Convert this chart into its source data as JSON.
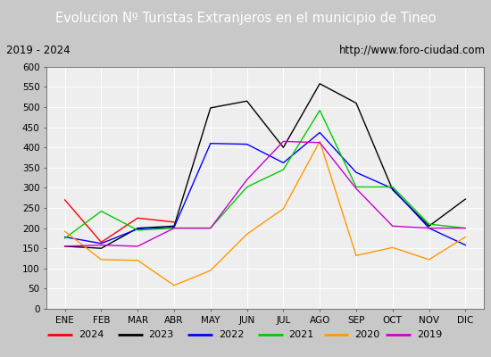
{
  "title": "Evolucion Nº Turistas Extranjeros en el municipio de Tineo",
  "subtitle_left": "2019 - 2024",
  "subtitle_right": "http://www.foro-ciudad.com",
  "months": [
    "ENE",
    "FEB",
    "MAR",
    "ABR",
    "MAY",
    "JUN",
    "JUL",
    "AGO",
    "SEP",
    "OCT",
    "NOV",
    "DIC"
  ],
  "series": {
    "2024": [
      270,
      165,
      225,
      215,
      null,
      null,
      null,
      null,
      null,
      null,
      null,
      null
    ],
    "2023": [
      155,
      150,
      200,
      205,
      498,
      515,
      400,
      558,
      510,
      295,
      205,
      272
    ],
    "2022": [
      178,
      162,
      198,
      202,
      410,
      408,
      362,
      437,
      338,
      298,
      200,
      158
    ],
    "2021": [
      175,
      242,
      195,
      200,
      200,
      302,
      345,
      492,
      302,
      302,
      210,
      200
    ],
    "2020": [
      192,
      122,
      120,
      58,
      95,
      185,
      248,
      415,
      132,
      152,
      122,
      178
    ],
    "2019": [
      155,
      158,
      155,
      200,
      200,
      320,
      415,
      412,
      298,
      205,
      200,
      200
    ]
  },
  "colors": {
    "2024": "#ff0000",
    "2023": "#000000",
    "2022": "#0000ff",
    "2021": "#00cc00",
    "2020": "#ff9900",
    "2019": "#cc00cc"
  },
  "ylim": [
    0,
    600
  ],
  "yticks": [
    0,
    50,
    100,
    150,
    200,
    250,
    300,
    350,
    400,
    450,
    500,
    550,
    600
  ],
  "title_bg": "#4d8fc4",
  "title_color": "#ffffff",
  "subtitle_bg": "#e8e8e8",
  "subtitle_border": "#aaaaaa",
  "plot_bg": "#eeeeee",
  "grid_color": "#ffffff",
  "legend_bg": "#f0f0f0",
  "legend_border": "#888888",
  "years_order": [
    "2024",
    "2023",
    "2022",
    "2021",
    "2020",
    "2019"
  ]
}
